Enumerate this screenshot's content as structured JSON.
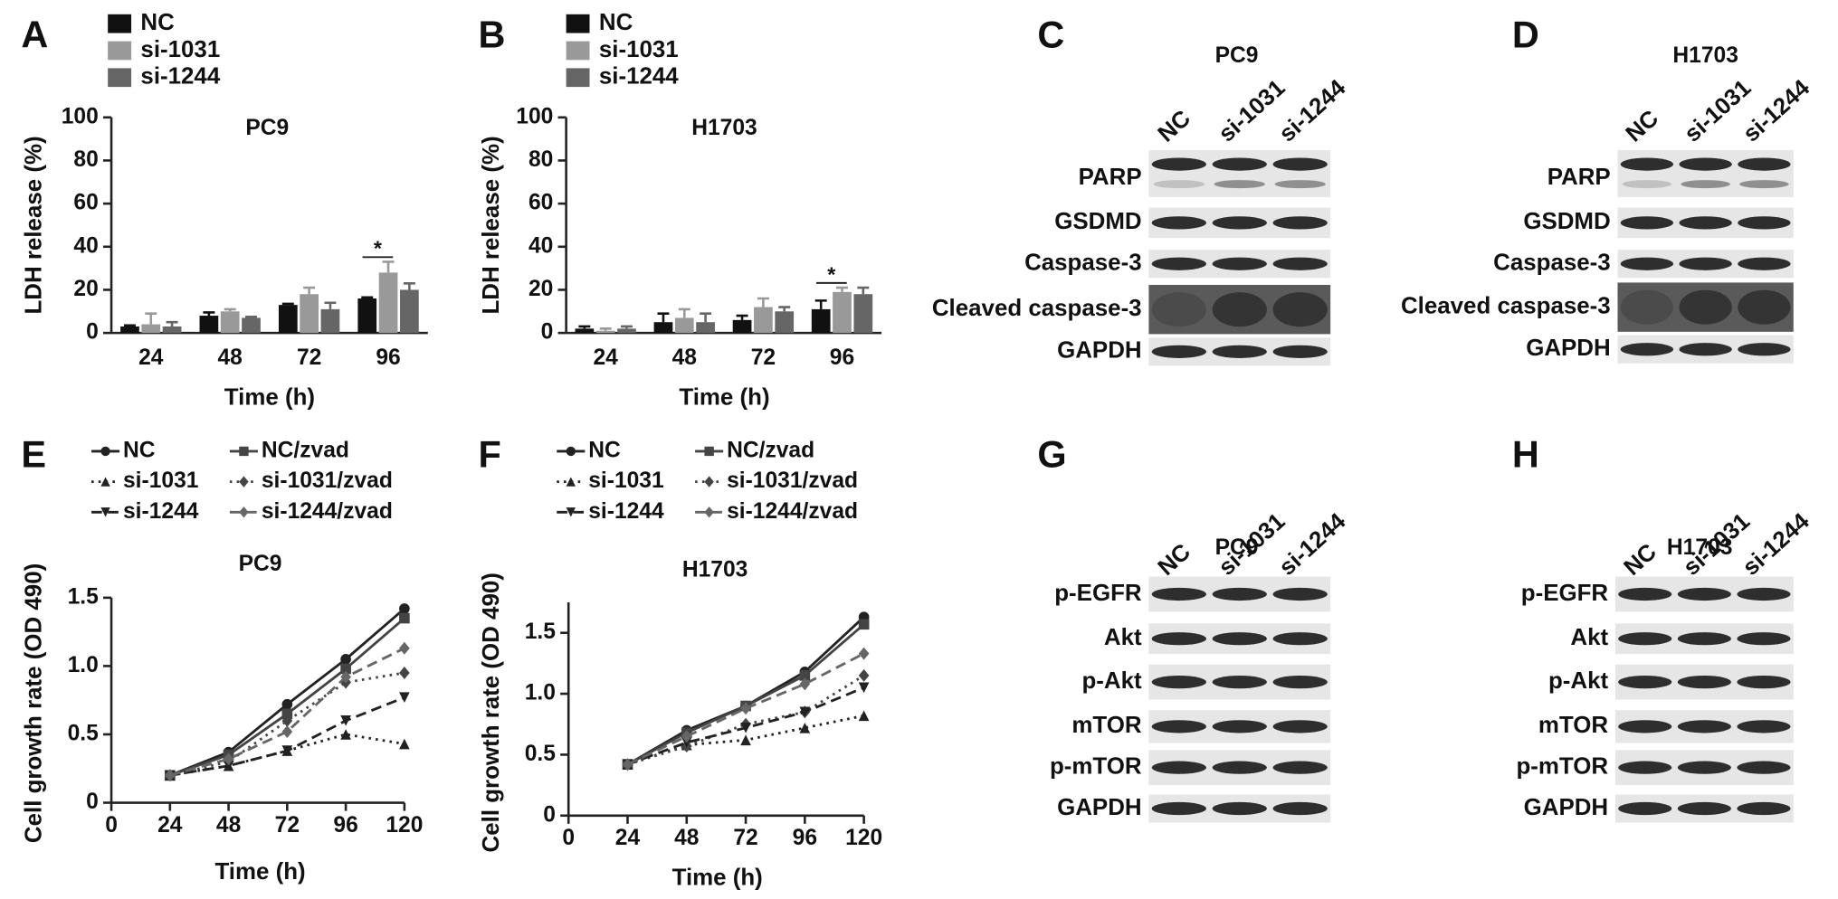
{
  "chart_data": [
    {
      "type": "bar",
      "panel": "A",
      "title": "PC9",
      "x_label": "Time (h)",
      "y_label": "LDH release (%)",
      "categories": [
        "24",
        "48",
        "72",
        "96"
      ],
      "series": [
        {
          "name": "NC",
          "color": "#111111",
          "values": [
            3,
            8,
            13,
            16
          ],
          "errors": [
            0.5,
            1.5,
            0.5,
            0.5
          ]
        },
        {
          "name": "si-1031",
          "color": "#999999",
          "values": [
            4,
            10,
            18,
            28
          ],
          "errors": [
            5,
            1,
            3,
            5
          ]
        },
        {
          "name": "si-1244",
          "color": "#666666",
          "values": [
            3,
            7,
            11,
            20
          ],
          "errors": [
            2,
            0.5,
            3,
            3
          ]
        }
      ],
      "ylim": [
        0,
        100
      ],
      "yticks": [
        0,
        20,
        40,
        60,
        80,
        100
      ],
      "annotations": [
        {
          "text": "*",
          "category": "96"
        }
      ]
    },
    {
      "type": "bar",
      "panel": "B",
      "title": "H1703",
      "x_label": "Time (h)",
      "y_label": "LDH release (%)",
      "categories": [
        "24",
        "48",
        "72",
        "96"
      ],
      "series": [
        {
          "name": "NC",
          "color": "#111111",
          "values": [
            2,
            5,
            6,
            11
          ],
          "errors": [
            1,
            4,
            2,
            4
          ]
        },
        {
          "name": "si-1031",
          "color": "#999999",
          "values": [
            1,
            7,
            12,
            19
          ],
          "errors": [
            1,
            4,
            4,
            2
          ]
        },
        {
          "name": "si-1244",
          "color": "#666666",
          "values": [
            2,
            5,
            10,
            18
          ],
          "errors": [
            1,
            4,
            2,
            3
          ]
        }
      ],
      "ylim": [
        0,
        100
      ],
      "yticks": [
        0,
        20,
        40,
        60,
        80,
        100
      ],
      "annotations": [
        {
          "text": "*",
          "category": "96"
        }
      ]
    },
    {
      "type": "line",
      "panel": "E",
      "title": "PC9",
      "x_label": "Time (h)",
      "y_label": "Cell growth rate (OD 490)",
      "x": [
        24,
        48,
        72,
        96,
        120
      ],
      "series": [
        {
          "name": "NC",
          "color": "#222222",
          "dash": "solid",
          "marker": "circle",
          "values": [
            0.2,
            0.37,
            0.72,
            1.05,
            1.42
          ]
        },
        {
          "name": "NC/zvad",
          "color": "#444444",
          "dash": "solid",
          "marker": "square",
          "values": [
            0.2,
            0.35,
            0.65,
            0.98,
            1.35
          ]
        },
        {
          "name": "si-1031",
          "color": "#222222",
          "dash": "dotted",
          "marker": "triangle",
          "values": [
            0.2,
            0.27,
            0.38,
            0.5,
            0.43
          ]
        },
        {
          "name": "si-1031/zvad",
          "color": "#444444",
          "dash": "dotted",
          "marker": "diamond",
          "values": [
            0.2,
            0.3,
            0.6,
            0.88,
            0.95
          ]
        },
        {
          "name": "si-1244",
          "color": "#222222",
          "dash": "dashed",
          "marker": "triangle-down",
          "values": [
            0.2,
            0.27,
            0.38,
            0.6,
            0.77
          ]
        },
        {
          "name": "si-1244/zvad",
          "color": "#666666",
          "dash": "dashed",
          "marker": "diamond",
          "values": [
            0.2,
            0.32,
            0.52,
            0.92,
            1.13
          ]
        }
      ],
      "xlim": [
        0,
        120
      ],
      "xticks": [
        0,
        24,
        48,
        72,
        96,
        120
      ],
      "ylim": [
        0,
        1.5
      ],
      "yticks": [
        0,
        0.5,
        {
          "value": 1,
          "label": "1.0"
        },
        1.5
      ]
    },
    {
      "type": "line",
      "panel": "F",
      "title": "H1703",
      "x_label": "Time (h)",
      "y_label": "Cell growth rate (OD 490)",
      "x": [
        24,
        48,
        72,
        96,
        120
      ],
      "series": [
        {
          "name": "NC",
          "color": "#222222",
          "dash": "solid",
          "marker": "circle",
          "values": [
            0.42,
            0.7,
            0.9,
            1.18,
            1.63
          ]
        },
        {
          "name": "NC/zvad",
          "color": "#444444",
          "dash": "solid",
          "marker": "square",
          "values": [
            0.42,
            0.68,
            0.9,
            1.15,
            1.57
          ]
        },
        {
          "name": "si-1031",
          "color": "#222222",
          "dash": "dotted",
          "marker": "triangle",
          "values": [
            0.42,
            0.58,
            0.62,
            0.72,
            0.82
          ]
        },
        {
          "name": "si-1031/zvad",
          "color": "#444444",
          "dash": "dotted",
          "marker": "diamond",
          "values": [
            0.42,
            0.57,
            0.75,
            0.85,
            1.15
          ]
        },
        {
          "name": "si-1244",
          "color": "#222222",
          "dash": "dashed",
          "marker": "triangle-down",
          "values": [
            0.42,
            0.6,
            0.72,
            0.85,
            1.05
          ]
        },
        {
          "name": "si-1244/zvad",
          "color": "#666666",
          "dash": "dashed",
          "marker": "diamond",
          "values": [
            0.42,
            0.65,
            0.88,
            1.08,
            1.33
          ]
        }
      ],
      "xlim": [
        0,
        120
      ],
      "xticks": [
        0,
        24,
        48,
        72,
        96,
        120
      ],
      "ylim": [
        0,
        1.75
      ],
      "yticks": [
        0,
        0.5,
        {
          "value": 1,
          "label": "1.0"
        },
        1.5
      ]
    }
  ],
  "blots": [
    {
      "panel": "C",
      "title": "PC9",
      "lanes": [
        "NC",
        "si-1031",
        "si-1244"
      ],
      "rows": [
        "PARP",
        "GSDMD",
        "Caspase-3",
        "Cleaved caspase-3",
        "GAPDH"
      ]
    },
    {
      "panel": "D",
      "title": "H1703",
      "lanes": [
        "NC",
        "si-1031",
        "si-1244"
      ],
      "rows": [
        "PARP",
        "GSDMD",
        "Caspase-3",
        "Cleaved caspase-3",
        "GAPDH"
      ]
    },
    {
      "panel": "G",
      "title": "PC9",
      "lanes": [
        "NC",
        "si-1031",
        "si-1244"
      ],
      "rows": [
        "p-EGFR",
        "Akt",
        "p-Akt",
        "mTOR",
        "p-mTOR",
        "GAPDH"
      ]
    },
    {
      "panel": "H",
      "title": "H1703",
      "lanes": [
        "NC",
        "si-1031",
        "si-1244"
      ],
      "rows": [
        "p-EGFR",
        "Akt",
        "p-Akt",
        "mTOR",
        "p-mTOR",
        "GAPDH"
      ]
    }
  ]
}
